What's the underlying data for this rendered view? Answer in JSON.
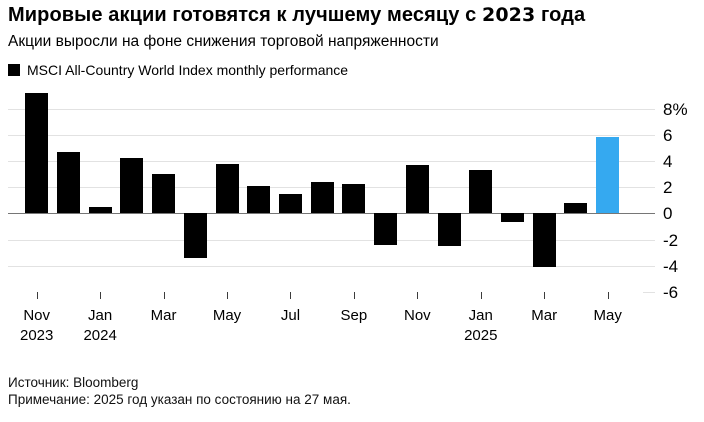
{
  "header": {
    "title_part1": "Мировые акции готовятся к лучшему месяцу с ",
    "title_year": "2023",
    "title_part2": " года",
    "subtitle": "Акции выросли на фоне снижения торговой напряженности"
  },
  "legend": {
    "label": "MSCI All-Country World Index monthly performance",
    "swatch_color": "#000000"
  },
  "footer": {
    "source": "Источник: Bloomberg",
    "note": "Примечание: 2025 год указан по состоянию на 27 мая."
  },
  "chart_data": {
    "type": "bar",
    "title": "Мировые акции готовятся к лучшему месяцу с 2023 года",
    "subtitle": "Акции выросли на фоне снижения торговой напряженности",
    "legend": "MSCI All-Country World Index monthly performance",
    "unit": "%",
    "categories": [
      "Nov 2023",
      "Dec 2023",
      "Jan 2024",
      "Feb 2024",
      "Mar 2024",
      "Apr 2024",
      "May 2024",
      "Jun 2024",
      "Jul 2024",
      "Aug 2024",
      "Sep 2024",
      "Oct 2024",
      "Nov 2024",
      "Dec 2024",
      "Jan 2025",
      "Feb 2025",
      "Mar 2025",
      "Apr 2025",
      "May 2025"
    ],
    "values": [
      9.2,
      4.7,
      0.5,
      4.2,
      3.0,
      -3.4,
      3.8,
      2.1,
      1.5,
      2.4,
      2.2,
      -2.4,
      3.7,
      -2.5,
      3.3,
      -0.7,
      -4.1,
      0.8,
      5.8
    ],
    "highlight_index": 18,
    "bar_color": "#000000",
    "highlight_color": "#35a9f0",
    "grid": true,
    "legend_position": "top-left",
    "ylim": [
      -6,
      9.6
    ],
    "yticks": [
      8,
      6,
      4,
      2,
      0,
      -2,
      -4,
      -6
    ],
    "ytick_labels": [
      "8%",
      "6",
      "4",
      "2",
      "0",
      "-2",
      "-4",
      "-6"
    ],
    "xtick_labels": [
      {
        "month": "Nov",
        "year": "2023",
        "bar_index": 0
      },
      {
        "month": "Jan",
        "year": "2024",
        "bar_index": 2
      },
      {
        "month": "Mar",
        "bar_index": 4
      },
      {
        "month": "May",
        "bar_index": 6
      },
      {
        "month": "Jul",
        "bar_index": 8
      },
      {
        "month": "Sep",
        "bar_index": 10
      },
      {
        "month": "Nov",
        "bar_index": 12
      },
      {
        "month": "Jan",
        "year": "2025",
        "bar_index": 14
      },
      {
        "month": "Mar",
        "bar_index": 16
      },
      {
        "month": "May",
        "bar_index": 18
      }
    ]
  }
}
